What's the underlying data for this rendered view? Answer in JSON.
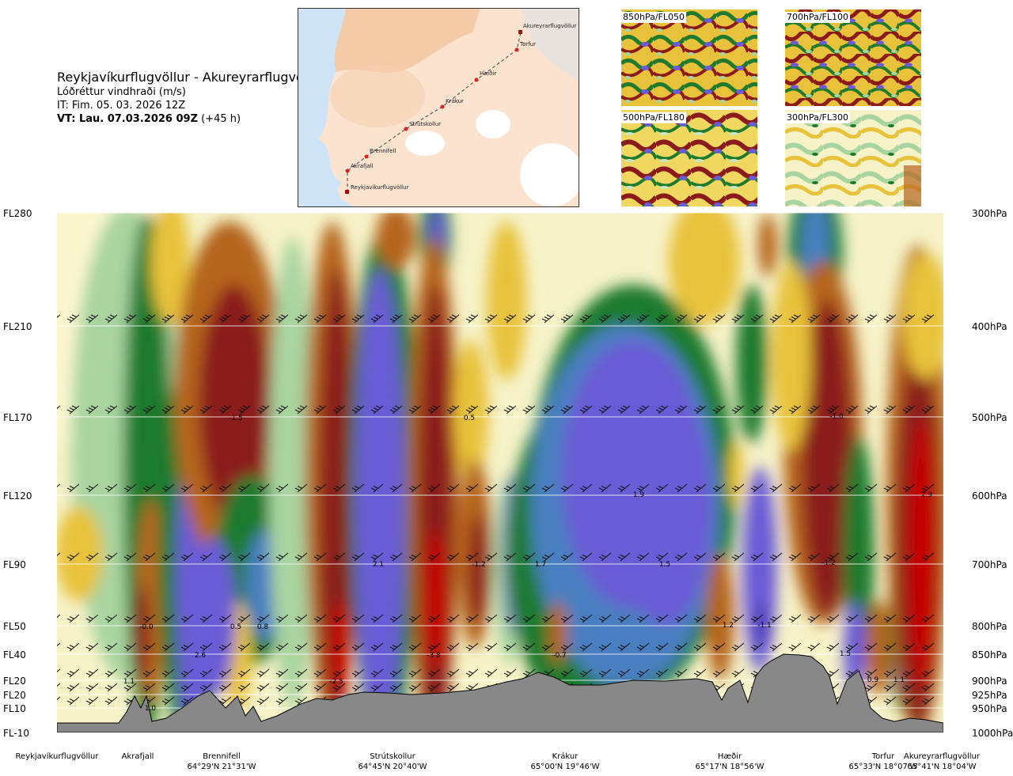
{
  "header": {
    "route": "Reykjavíkurflugvöllur - Akureyrarflugvöllur",
    "parameter": "Lóðréttur vindhraði (m/s)",
    "issue_time": "IT: Fim. 05. 03. 2026 12Z",
    "valid_time": "VT: Lau. 07.03.2026 09Z",
    "lead": " (+45 h)"
  },
  "route_map": {
    "waypoints": [
      "Reykjavíkurflugvöllur",
      "Akrafjall",
      "Brennifell",
      "Strútskollur",
      "Krákur",
      "Hæðir",
      "Torfur",
      "Akureyrarflugvöllur"
    ]
  },
  "thumbnails": [
    {
      "label": "850hPa/FL050"
    },
    {
      "label": "700hPa/FL100"
    },
    {
      "label": "500hPa/FL180"
    },
    {
      "label": "300hPa/FL300"
    }
  ],
  "left_levels": [
    "FL280",
    "FL210",
    "FL170",
    "FL120",
    "FL90",
    "FL50",
    "FL40",
    "FL20",
    "FL20",
    "FL10",
    "FL-10"
  ],
  "right_levels": [
    "300hPa",
    "400hPa",
    "500hPa",
    "600hPa",
    "700hPa",
    "800hPa",
    "850hPa",
    "900hPa",
    "925hPa",
    "950hPa",
    "1000hPa"
  ],
  "locations": [
    {
      "name": "Reykjavíkurflugvöllur",
      "coord": ""
    },
    {
      "name": "Akrafjall",
      "coord": ""
    },
    {
      "name": "Brennifell",
      "coord": "64°29'N 21°31'W"
    },
    {
      "name": "Strútskollur",
      "coord": "64°45'N 20°40'W"
    },
    {
      "name": "Krákur",
      "coord": "65°00'N 19°46'W"
    },
    {
      "name": "Hæðir",
      "coord": "65°17'N 18°56'W"
    },
    {
      "name": "Torfur",
      "coord": "65°33'N 18°07'W"
    },
    {
      "name": "Akureyrarflugvöllur",
      "coord": "65°41'N 18°04'W"
    }
  ],
  "chart_data": {
    "type": "heatmap",
    "x_stations": [
      "Reykjavíkurflugvöllur",
      "Akrafjall",
      "Brennifell",
      "Strútskollur",
      "Krákur",
      "Hæðir",
      "Torfur",
      "Akureyrarflugvöllur"
    ],
    "y_pressure_hPa": [
      300,
      400,
      500,
      600,
      700,
      800,
      850,
      900,
      925,
      950,
      1000
    ],
    "value_labels": [
      "-1.5",
      "0.5",
      "-1.0",
      "1.9",
      "2.9",
      "2.1",
      "-1.2",
      "1.7",
      "1.5",
      "-1.2",
      "-0.0",
      "0.5",
      "0.8",
      "1.2",
      "-1.1",
      "2.6",
      "-3.8",
      "-0.7",
      "1.5",
      "1.1",
      "-2.5",
      "0.9",
      "1.1",
      "1.0"
    ],
    "colors": {
      "strong_sink": "#8b1a1a",
      "sink": "#b5651d",
      "weak_sink": "#e8c23a",
      "neutral": "#f6f2c8",
      "weak_rise": "#a9d4a0",
      "rise": "#1f7a2e",
      "strong_rise": "#6b5bd6",
      "max_rise": "#3a1aa8",
      "terrain": "#888888"
    }
  }
}
